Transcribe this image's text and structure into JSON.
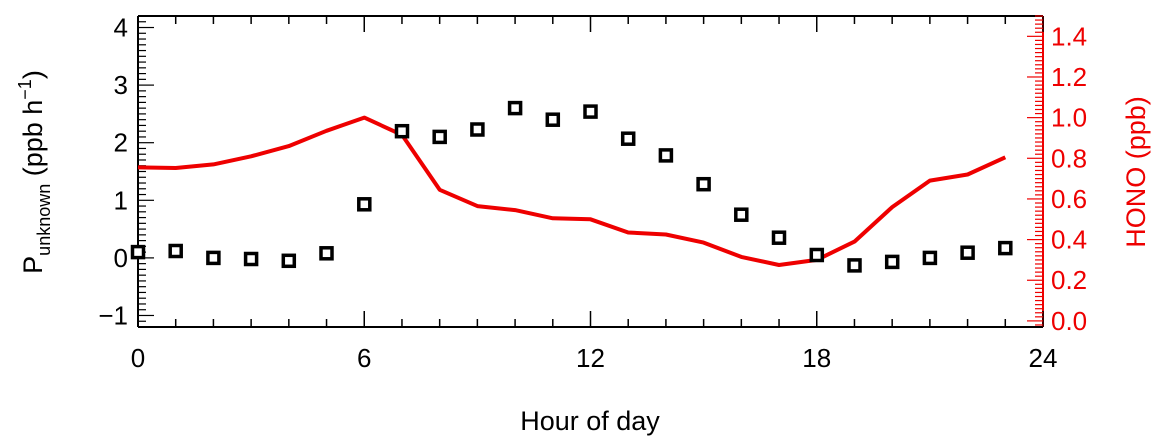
{
  "chart_data": {
    "type": "scatter",
    "xlabel": "Hour of day",
    "x_ticks": [
      0,
      6,
      12,
      18,
      24
    ],
    "x_tick_labels": [
      "0",
      "6",
      "12",
      "18",
      "24"
    ],
    "xlim": [
      0,
      24
    ],
    "left_axis": {
      "label_main": "P",
      "label_sub": "unknown",
      "label_units": " (ppb h",
      "label_sup": "−1",
      "label_close": ")",
      "ylim": [
        -1.2,
        4.2
      ],
      "ticks": [
        -1,
        0,
        1,
        2,
        3,
        4
      ],
      "tick_labels": [
        "−1",
        "0",
        "1",
        "2",
        "3",
        "4"
      ],
      "color": "#000000"
    },
    "right_axis": {
      "label": "HONO (ppb)",
      "ylim": [
        -0.03,
        1.5
      ],
      "ticks": [
        0.0,
        0.2,
        0.4,
        0.6,
        0.8,
        1.0,
        1.2,
        1.4
      ],
      "tick_labels": [
        "0.0",
        "0.2",
        "0.4",
        "0.6",
        "0.8",
        "1.0",
        "1.2",
        "1.4"
      ],
      "color": "#ee0000"
    },
    "series": [
      {
        "axis": "left",
        "style": "square-markers",
        "color": "#000000",
        "x": [
          0,
          1,
          2,
          3,
          4,
          5,
          6,
          7,
          8,
          9,
          10,
          11,
          12,
          13,
          14,
          15,
          16,
          17,
          18,
          19,
          20,
          21,
          22,
          23
        ],
        "values": [
          0.1,
          0.12,
          0.0,
          -0.02,
          -0.05,
          0.08,
          0.93,
          2.2,
          2.1,
          2.23,
          2.6,
          2.4,
          2.54,
          2.07,
          1.78,
          1.28,
          0.75,
          0.35,
          0.05,
          -0.13,
          -0.07,
          0.0,
          0.09,
          0.17
        ]
      },
      {
        "axis": "right",
        "style": "line",
        "color": "#ee0000",
        "x": [
          0,
          1,
          2,
          3,
          4,
          5,
          6,
          7,
          8,
          9,
          10,
          11,
          12,
          13,
          14,
          15,
          16,
          17,
          18,
          19,
          20,
          21,
          22,
          23
        ],
        "values": [
          0.755,
          0.752,
          0.77,
          0.81,
          0.86,
          0.935,
          1.0,
          0.915,
          0.645,
          0.565,
          0.545,
          0.505,
          0.5,
          0.435,
          0.425,
          0.385,
          0.315,
          0.275,
          0.3,
          0.39,
          0.56,
          0.69,
          0.72,
          0.805
        ]
      }
    ]
  }
}
